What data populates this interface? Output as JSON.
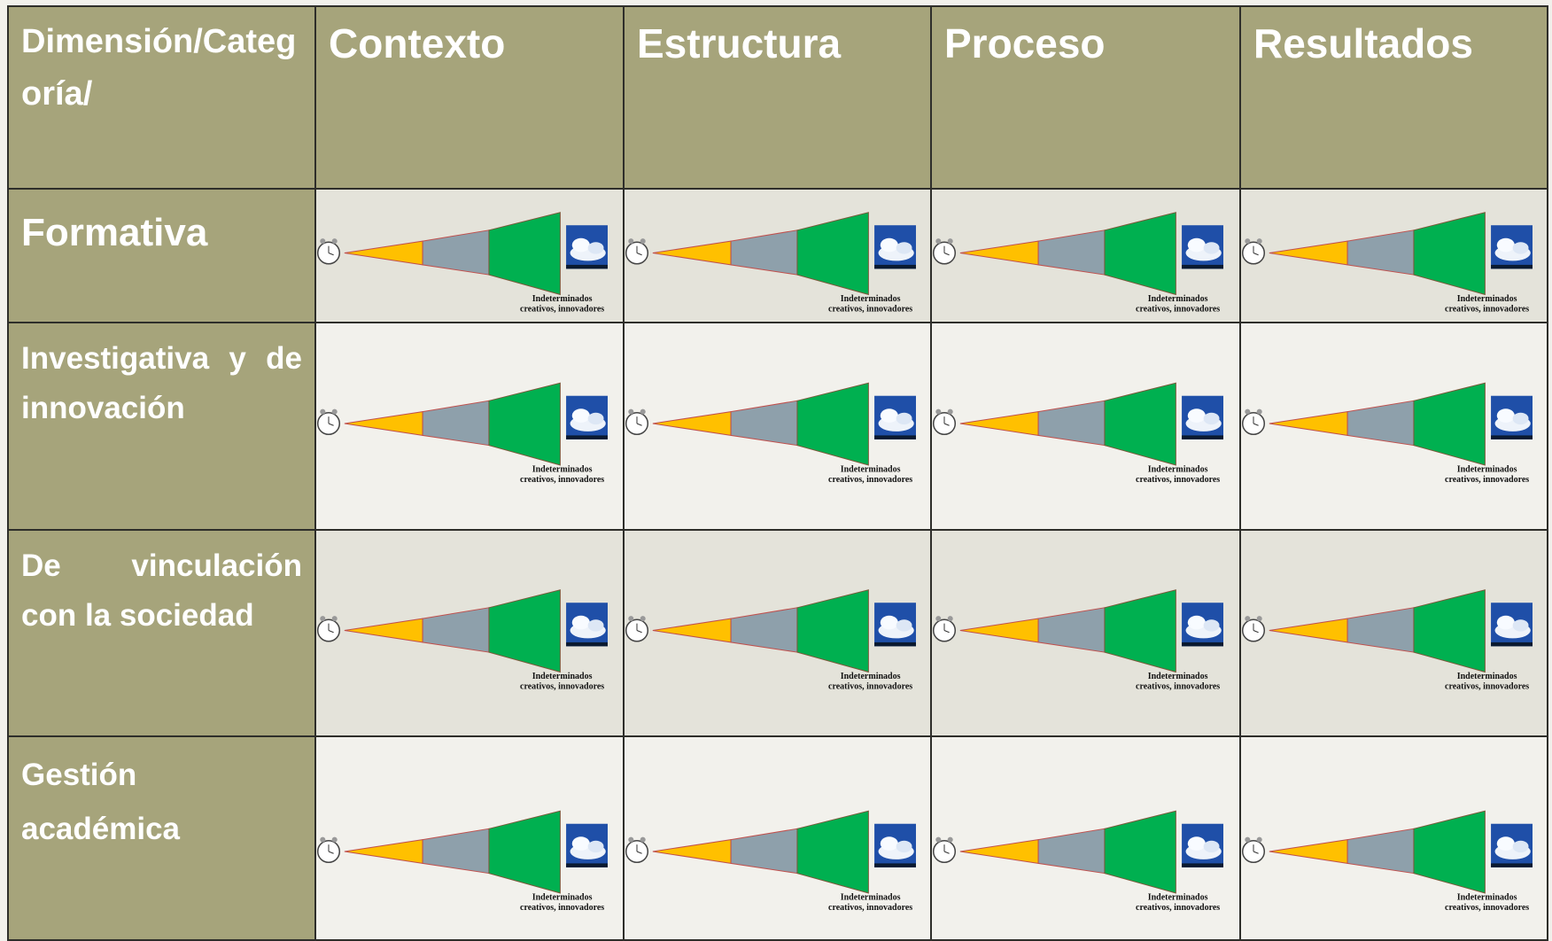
{
  "table": {
    "header": [
      "Dimensión/Categoría/",
      "Contexto",
      "Estructura",
      "Proceso",
      "Resultados"
    ],
    "rows": [
      {
        "label": "Formativa",
        "cells": [
          {
            "caption": [
              "Indeterminados",
              "creativos, innovadores"
            ]
          },
          {
            "caption": [
              "Indeterminados",
              "creativos, innovadores"
            ]
          },
          {
            "caption": [
              "Indeterminados",
              "creativos, innovadores"
            ]
          },
          {
            "caption": [
              "Indeterminados",
              "creativos, innovadores"
            ]
          }
        ]
      },
      {
        "label": "Investigativa y de innovación",
        "cells": [
          {
            "caption": [
              "Indeterminados",
              "creativos, innovadores"
            ]
          },
          {
            "caption": [
              "Indeterminados",
              "creativos, innovadores"
            ]
          },
          {
            "caption": [
              "Indeterminados",
              "creativos, innovadores"
            ]
          },
          {
            "caption": [
              "Indeterminados",
              "creativos, innovadores"
            ]
          }
        ]
      },
      {
        "label": "De vinculación con la sociedad",
        "cells": [
          {
            "caption": [
              "Indeterminados",
              "creativos, innovadores"
            ]
          },
          {
            "caption": [
              "Indeterminados",
              "creativos, innovadores"
            ]
          },
          {
            "caption": [
              "Indeterminados",
              "creativos, innovadores"
            ]
          },
          {
            "caption": [
              "Indeterminados",
              "creativos, innovadores"
            ]
          }
        ]
      },
      {
        "label": "Gestión académica",
        "cells": [
          {
            "caption": [
              "Indeterminados",
              "creativos, innovadores"
            ]
          },
          {
            "caption": [
              "Indeterminados",
              "creativos, innovadores"
            ]
          },
          {
            "caption": [
              "Indeterminados",
              "creativos, innovadores"
            ]
          },
          {
            "caption": [
              "Indeterminados",
              "creativos, innovadores"
            ]
          }
        ]
      }
    ]
  }
}
